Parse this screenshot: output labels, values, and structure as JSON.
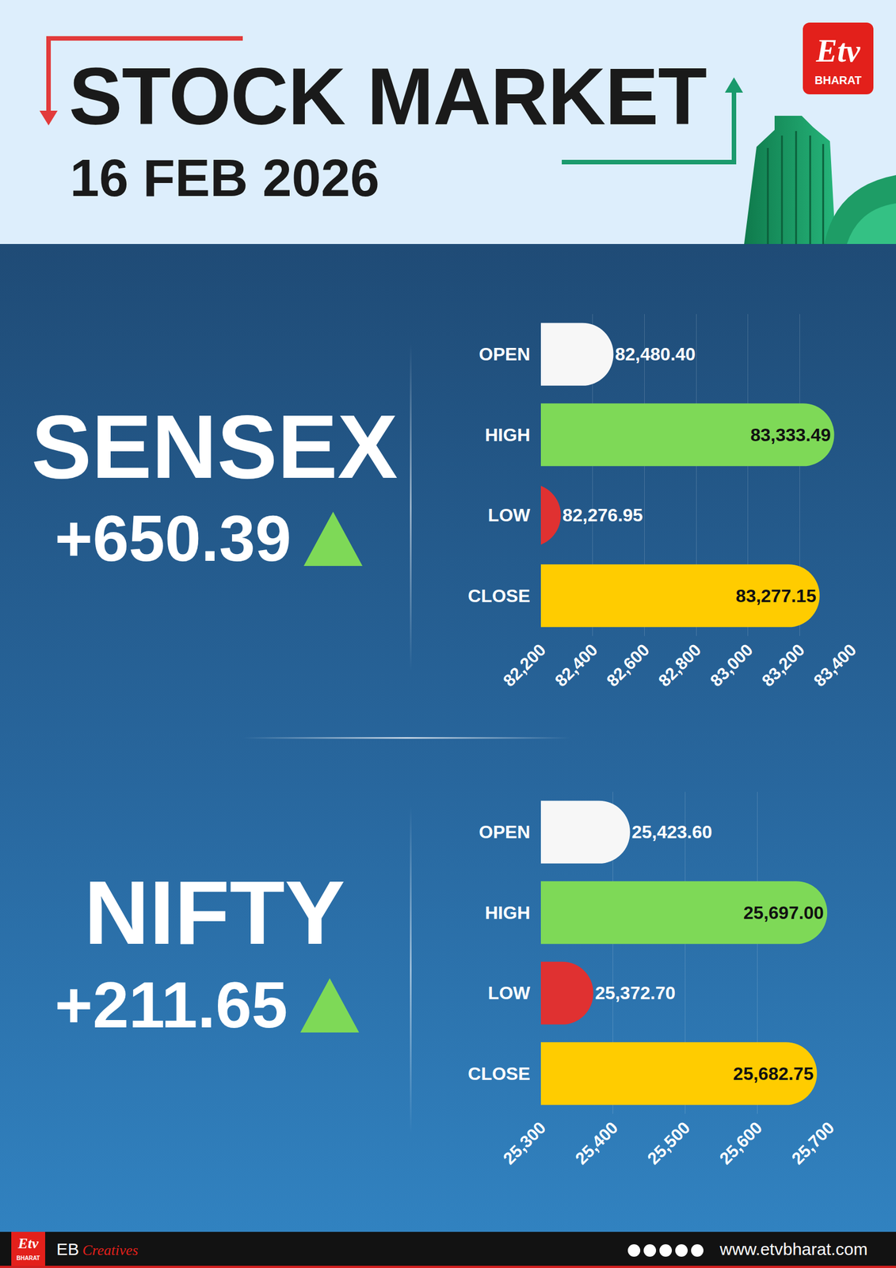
{
  "header": {
    "title": "STOCK MARKET",
    "date": "16 FEB 2026",
    "logo": {
      "mark": "Etv",
      "name": "BHARAT"
    }
  },
  "chart_data": [
    {
      "type": "bar",
      "orientation": "horizontal",
      "title": "SENSEX",
      "subtitle": "+650.39",
      "categories": [
        "OPEN",
        "HIGH",
        "LOW",
        "CLOSE"
      ],
      "values": [
        82480.4,
        83333.49,
        82276.95,
        83277.15
      ],
      "value_labels": [
        "82,480.40",
        "83,333.49",
        "82,276.95",
        "83,277.15"
      ],
      "colors": [
        "#f7f7f7",
        "#7ed957",
        "#e03131",
        "#ffcc00"
      ],
      "xlim": [
        82200,
        83400
      ],
      "xticks": [
        {
          "value": 82200,
          "label": "82,200"
        },
        {
          "value": 82400,
          "label": "82,400"
        },
        {
          "value": 82600,
          "label": "82,600"
        },
        {
          "value": 82800,
          "label": "82,800"
        },
        {
          "value": 83000,
          "label": "83,000"
        },
        {
          "value": 83200,
          "label": "83,200"
        },
        {
          "value": 83400,
          "label": "83,400"
        }
      ],
      "grid": true,
      "data_labels": true
    },
    {
      "type": "bar",
      "orientation": "horizontal",
      "title": "NIFTY",
      "subtitle": "+211.65",
      "categories": [
        "OPEN",
        "HIGH",
        "LOW",
        "CLOSE"
      ],
      "values": [
        25423.6,
        25697.0,
        25372.7,
        25682.75
      ],
      "value_labels": [
        "25,423.60",
        "25,697.00",
        "25,372.70",
        "25,682.75"
      ],
      "colors": [
        "#f7f7f7",
        "#7ed957",
        "#e03131",
        "#ffcc00"
      ],
      "xlim": [
        25300,
        25700
      ],
      "xticks": [
        {
          "value": 25300,
          "label": "25,300"
        },
        {
          "value": 25400,
          "label": "25,400"
        },
        {
          "value": 25500,
          "label": "25,500"
        },
        {
          "value": 25600,
          "label": "25,600"
        },
        {
          "value": 25700,
          "label": "25,700"
        }
      ],
      "grid": true,
      "data_labels": true
    }
  ],
  "footer": {
    "brand": "EB",
    "tag": "Creatives",
    "url": "www.etvbharat.com"
  }
}
